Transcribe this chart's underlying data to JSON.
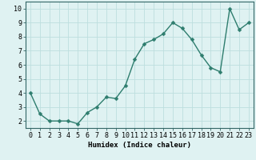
{
  "x": [
    0,
    1,
    2,
    3,
    4,
    5,
    6,
    7,
    8,
    9,
    10,
    11,
    12,
    13,
    14,
    15,
    16,
    17,
    18,
    19,
    20,
    21,
    22,
    23
  ],
  "y": [
    4.0,
    2.5,
    2.0,
    2.0,
    2.0,
    1.8,
    2.6,
    3.0,
    3.7,
    3.6,
    4.5,
    6.4,
    7.5,
    7.8,
    8.2,
    9.0,
    8.6,
    7.8,
    6.7,
    5.8,
    5.5,
    10.0,
    8.5,
    9.0
  ],
  "line_color": "#2e7d6e",
  "bg_color": "#dff2f2",
  "grid_color": "#bddede",
  "xlabel": "Humidex (Indice chaleur)",
  "yticks": [
    2,
    3,
    4,
    5,
    6,
    7,
    8,
    9,
    10
  ],
  "ylim": [
    1.5,
    10.5
  ],
  "xlim": [
    -0.5,
    23.5
  ],
  "xlabel_fontsize": 6.5,
  "tick_fontsize": 6.0,
  "linewidth": 1.0,
  "markersize": 2.5
}
